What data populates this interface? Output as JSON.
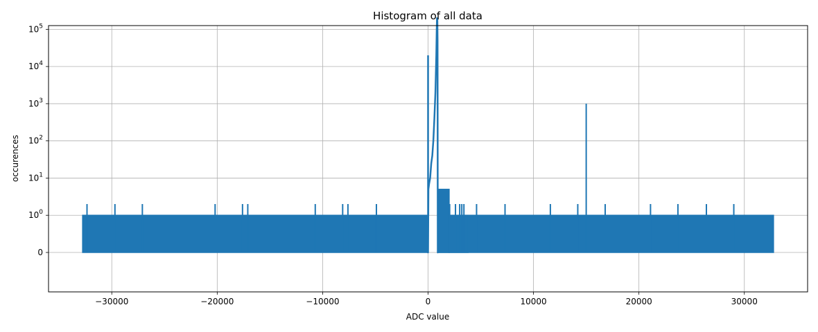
{
  "chart_data": {
    "type": "line",
    "title": "Histogram of all data",
    "xlabel": "ADC value",
    "ylabel": "occurences",
    "yscale": "symlog",
    "grid": true,
    "xlim": [
      -36000,
      36000
    ],
    "x_ticks": [
      {
        "value": -30000,
        "label": "−30000"
      },
      {
        "value": -20000,
        "label": "−20000"
      },
      {
        "value": -10000,
        "label": "−10000"
      },
      {
        "value": 0,
        "label": "0"
      },
      {
        "value": 10000,
        "label": "10000"
      },
      {
        "value": 20000,
        "label": "20000"
      },
      {
        "value": 30000,
        "label": "30000"
      }
    ],
    "y_ticks": [
      {
        "value": 0,
        "label": "0"
      },
      {
        "value": 1,
        "base": "10",
        "exp": "0"
      },
      {
        "value": 10,
        "base": "10",
        "exp": "1"
      },
      {
        "value": 100,
        "base": "10",
        "exp": "2"
      },
      {
        "value": 1000,
        "base": "10",
        "exp": "3"
      },
      {
        "value": 10000,
        "base": "10",
        "exp": "4"
      },
      {
        "value": 100000,
        "base": "10",
        "exp": "5"
      }
    ],
    "series": [
      {
        "color": "#1f77b4",
        "dense_bands": [
          {
            "x_start": -32768,
            "x_end": 0,
            "low": 0,
            "high": 1
          },
          {
            "x_start": 950,
            "x_end": 32767,
            "low": 0,
            "high": 1
          },
          {
            "x_start": 1000,
            "x_end": 2000,
            "low": 0,
            "high": 5
          },
          {
            "x_start": 2000,
            "x_end": 3800,
            "low": 0,
            "high": 1
          }
        ],
        "spikes": [
          {
            "x": -32350,
            "y": 2
          },
          {
            "x": -29700,
            "y": 2
          },
          {
            "x": -27100,
            "y": 2
          },
          {
            "x": -20200,
            "y": 2
          },
          {
            "x": -17600,
            "y": 2
          },
          {
            "x": -17100,
            "y": 2
          },
          {
            "x": -10700,
            "y": 2
          },
          {
            "x": -8100,
            "y": 2
          },
          {
            "x": -7600,
            "y": 2
          },
          {
            "x": -4900,
            "y": 2
          },
          {
            "x": 2050,
            "y": 2
          },
          {
            "x": 2600,
            "y": 2
          },
          {
            "x": 3000,
            "y": 2
          },
          {
            "x": 3200,
            "y": 2
          },
          {
            "x": 3400,
            "y": 2
          },
          {
            "x": 4600,
            "y": 2
          },
          {
            "x": 7300,
            "y": 2
          },
          {
            "x": 11600,
            "y": 2
          },
          {
            "x": 14200,
            "y": 2
          },
          {
            "x": 15000,
            "y": 1000
          },
          {
            "x": 16800,
            "y": 2
          },
          {
            "x": 21100,
            "y": 2
          },
          {
            "x": 23700,
            "y": 2
          },
          {
            "x": 26400,
            "y": 2
          },
          {
            "x": 29000,
            "y": 2
          }
        ],
        "peak_curve": [
          [
            0,
            20000
          ],
          [
            0,
            0
          ],
          [
            30,
            5
          ],
          [
            100,
            7
          ],
          [
            200,
            10
          ],
          [
            300,
            25
          ],
          [
            400,
            40
          ],
          [
            500,
            100
          ],
          [
            600,
            400
          ],
          [
            700,
            2000
          ],
          [
            780,
            20000
          ],
          [
            820,
            100000
          ],
          [
            850,
            200000
          ],
          [
            880,
            180000
          ],
          [
            900,
            50000
          ],
          [
            920,
            0
          ],
          [
            960,
            0
          ]
        ]
      }
    ]
  }
}
